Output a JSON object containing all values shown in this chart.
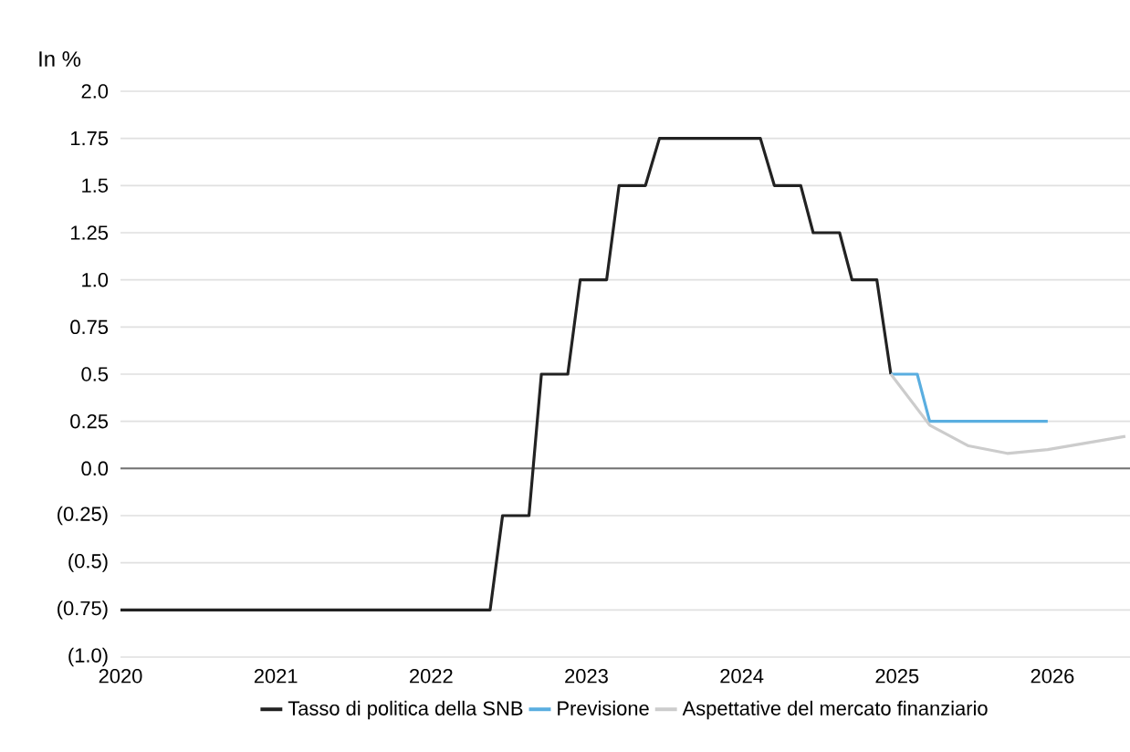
{
  "chart_data": {
    "type": "line",
    "ylabel": "In %",
    "xlim": [
      2020,
      2026.5
    ],
    "xticks": [
      {
        "value": 2020,
        "label": "2020"
      },
      {
        "value": 2021,
        "label": "2021"
      },
      {
        "value": 2022,
        "label": "2022"
      },
      {
        "value": 2023,
        "label": "2023"
      },
      {
        "value": 2024,
        "label": "2024"
      },
      {
        "value": 2025,
        "label": "2025"
      },
      {
        "value": 2026,
        "label": "2026"
      }
    ],
    "ylim": [
      -1.0,
      2.0
    ],
    "yticks": [
      {
        "value": -1.0,
        "label": "(1.0)"
      },
      {
        "value": -0.75,
        "label": "(0.75)"
      },
      {
        "value": -0.5,
        "label": "(0.5)"
      },
      {
        "value": -0.25,
        "label": "(0.25)"
      },
      {
        "value": 0,
        "label": "0.0"
      },
      {
        "value": 0.25,
        "label": "0.25"
      },
      {
        "value": 0.5,
        "label": "0.5"
      },
      {
        "value": 0.75,
        "label": "0.75"
      },
      {
        "value": 1.0,
        "label": "1.0"
      },
      {
        "value": 1.25,
        "label": "1.25"
      },
      {
        "value": 1.5,
        "label": "1.5"
      },
      {
        "value": 1.75,
        "label": "1.75"
      },
      {
        "value": 2.0,
        "label": "2.0"
      }
    ],
    "grid": "y",
    "legend": "bottom",
    "marker": "none",
    "line_style": "solid",
    "series": [
      {
        "name": "Tasso di politica della SNB",
        "color": "#222222",
        "x": [
          2020,
          2022.38,
          2022.46,
          2022.63,
          2022.71,
          2022.88,
          2022.96,
          2023.13,
          2023.21,
          2023.38,
          2023.47,
          2024.12,
          2024.21,
          2024.38,
          2024.46,
          2024.63,
          2024.71,
          2024.87,
          2024.96
        ],
        "values": [
          -0.75,
          -0.75,
          -0.25,
          -0.25,
          0.5,
          0.5,
          1.0,
          1.0,
          1.5,
          1.5,
          1.75,
          1.75,
          1.5,
          1.5,
          1.25,
          1.25,
          1.0,
          1.0,
          0.5
        ]
      },
      {
        "name": "Previsione",
        "color": "#5aaee0",
        "x": [
          2024.96,
          2025.13,
          2025.21,
          2025.97
        ],
        "values": [
          0.5,
          0.5,
          0.25,
          0.25
        ]
      },
      {
        "name": "Aspettative del mercato finanziario",
        "color": "#cccccc",
        "x": [
          2024.96,
          2025.21,
          2025.46,
          2025.71,
          2025.97,
          2026.47
        ],
        "values": [
          0.5,
          0.23,
          0.12,
          0.08,
          0.1,
          0.17
        ]
      }
    ]
  }
}
